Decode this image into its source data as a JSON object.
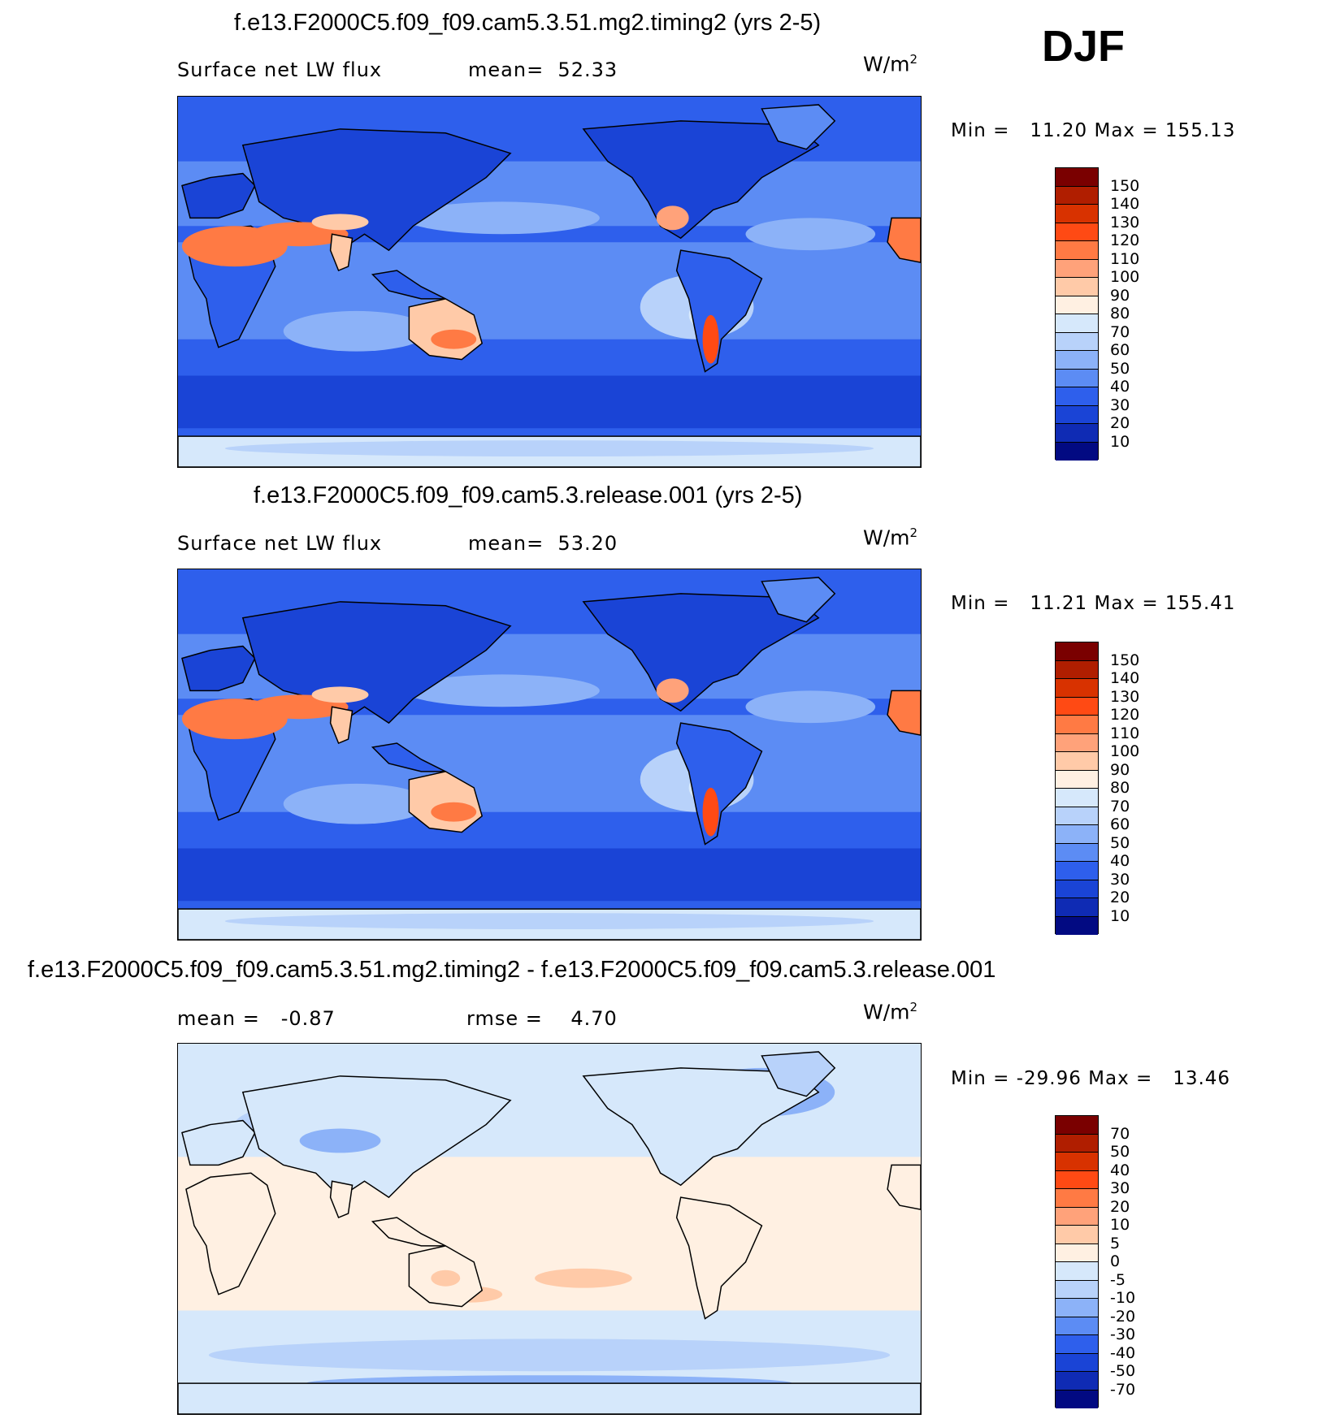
{
  "season": "DJF",
  "panels": [
    {
      "id": "p1",
      "title": "f.e13.F2000C5.f09_f09.cam5.3.51.mg2.timing2 (yrs 2-5)",
      "left_text": "Surface net LW flux",
      "right_text": "mean=  52.33",
      "unit": "W/m",
      "unit_sup": "2",
      "minmax": "Min =   11.20 Max = 155.13",
      "colorbar": {
        "labels": [
          "150",
          "140",
          "130",
          "120",
          "110",
          "100",
          "90",
          "80",
          "70",
          "60",
          "50",
          "40",
          "30",
          "20",
          "10"
        ],
        "colors": [
          "#7a0000",
          "#b01e00",
          "#d83200",
          "#ff4a14",
          "#ff7a44",
          "#ffa27a",
          "#ffcaa8",
          "#fff0e2",
          "#d6e8fb",
          "#b8d2fa",
          "#8cb2f8",
          "#5c8cf4",
          "#2e5fec",
          "#1a44d6",
          "#0f2bb4",
          "#020a82"
        ]
      },
      "map": {
        "variant": "full"
      }
    },
    {
      "id": "p2",
      "title": "f.e13.F2000C5.f09_f09.cam5.3.release.001 (yrs 2-5)",
      "left_text": "Surface net LW flux",
      "right_text": "mean=  53.20",
      "unit": "W/m",
      "unit_sup": "2",
      "minmax": "Min =   11.21 Max = 155.41",
      "colorbar": {
        "labels": [
          "150",
          "140",
          "130",
          "120",
          "110",
          "100",
          "90",
          "80",
          "70",
          "60",
          "50",
          "40",
          "30",
          "20",
          "10"
        ],
        "colors": [
          "#7a0000",
          "#b01e00",
          "#d83200",
          "#ff4a14",
          "#ff7a44",
          "#ffa27a",
          "#ffcaa8",
          "#fff0e2",
          "#d6e8fb",
          "#b8d2fa",
          "#8cb2f8",
          "#5c8cf4",
          "#2e5fec",
          "#1a44d6",
          "#0f2bb4",
          "#020a82"
        ]
      },
      "map": {
        "variant": "full"
      }
    },
    {
      "id": "p3",
      "title": "f.e13.F2000C5.f09_f09.cam5.3.51.mg2.timing2 - f.e13.F2000C5.f09_f09.cam5.3.release.001",
      "left_text": "mean =   -0.87",
      "right_text": "rmse =    4.70",
      "unit": "W/m",
      "unit_sup": "2",
      "minmax": "Min = -29.96 Max =   13.46",
      "colorbar": {
        "labels": [
          "70",
          "50",
          "40",
          "30",
          "20",
          "10",
          "5",
          "0",
          "-5",
          "-10",
          "-20",
          "-30",
          "-40",
          "-50",
          "-70"
        ],
        "colors": [
          "#7a0000",
          "#b01e00",
          "#d83200",
          "#ff4a14",
          "#ff7a44",
          "#ffa27a",
          "#ffcaa8",
          "#fff0e2",
          "#d6e8fb",
          "#b8d2fa",
          "#8cb2f8",
          "#5c8cf4",
          "#2e5fec",
          "#1a44d6",
          "#0f2bb4",
          "#020a82"
        ]
      },
      "map": {
        "variant": "diff"
      }
    }
  ]
}
